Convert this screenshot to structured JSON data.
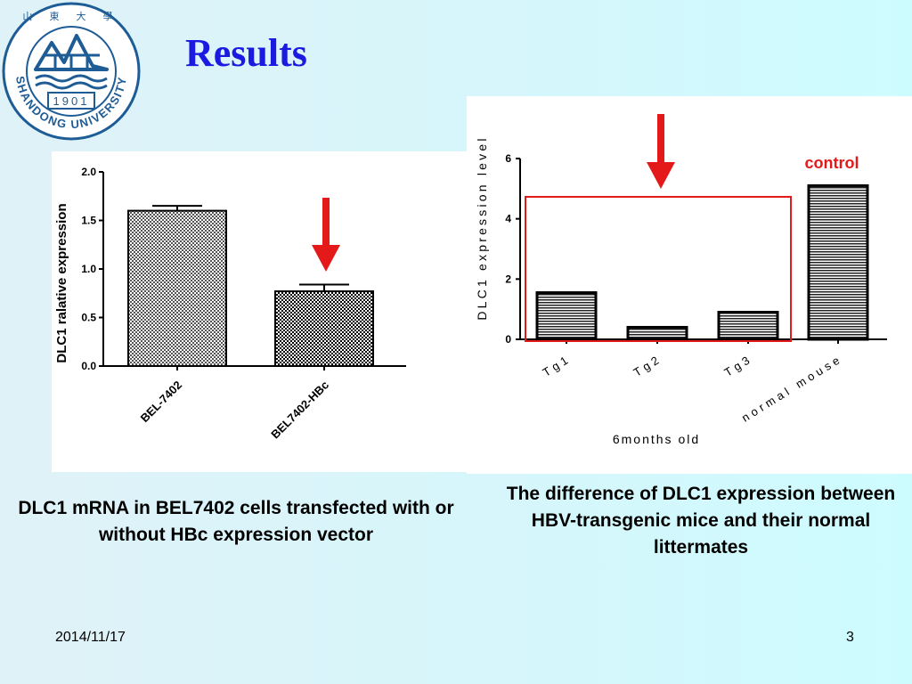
{
  "slide": {
    "title": "Results",
    "logo": {
      "ring_text": "SHANDONG UNIVERSITY",
      "year": "1901",
      "top_glyphs": "山 東 大 學"
    },
    "footer": {
      "date": "2014/11/17",
      "page": "3"
    }
  },
  "captions": {
    "left": "DLC1 mRNA in BEL7402 cells transfected with or without HBc expression vector",
    "right": "The difference of DLC1 expression between HBV-transgenic mice and their normal littermates"
  },
  "colors": {
    "title": "#1a1ae0",
    "arrow": "#e41a1a",
    "highlight_box": "#e41a1a"
  },
  "chart_data": [
    {
      "type": "bar",
      "categories": [
        "BEL-7402",
        "BEL7402-HBc"
      ],
      "values": [
        1.6,
        0.77
      ],
      "error": [
        0.05,
        0.07
      ],
      "ylabel": "DLC1 ralative expression",
      "xlabel": "",
      "ylim": [
        0,
        2.0
      ],
      "yticks": [
        "0.0",
        "0.5",
        "1.0",
        "1.5",
        "2.0"
      ],
      "pattern": "checkerboard",
      "annotation": {
        "type": "down-arrow",
        "target": "BEL7402-HBc"
      }
    },
    {
      "type": "bar",
      "categories": [
        "Tg1",
        "Tg2",
        "Tg3",
        "normal mouse"
      ],
      "values": [
        1.55,
        0.4,
        0.9,
        5.1
      ],
      "ylabel": "DLC1 expression level",
      "xlabel": "6months old",
      "ylim": [
        0,
        6
      ],
      "yticks": [
        "0",
        "2",
        "4",
        "6"
      ],
      "pattern": "horizontal-stripes",
      "annotations": [
        {
          "type": "down-arrow",
          "target": "Tg1-Tg3"
        },
        {
          "type": "box",
          "target": "Tg1-Tg3"
        },
        {
          "type": "label",
          "text": "control",
          "target": "normal mouse"
        }
      ]
    }
  ]
}
